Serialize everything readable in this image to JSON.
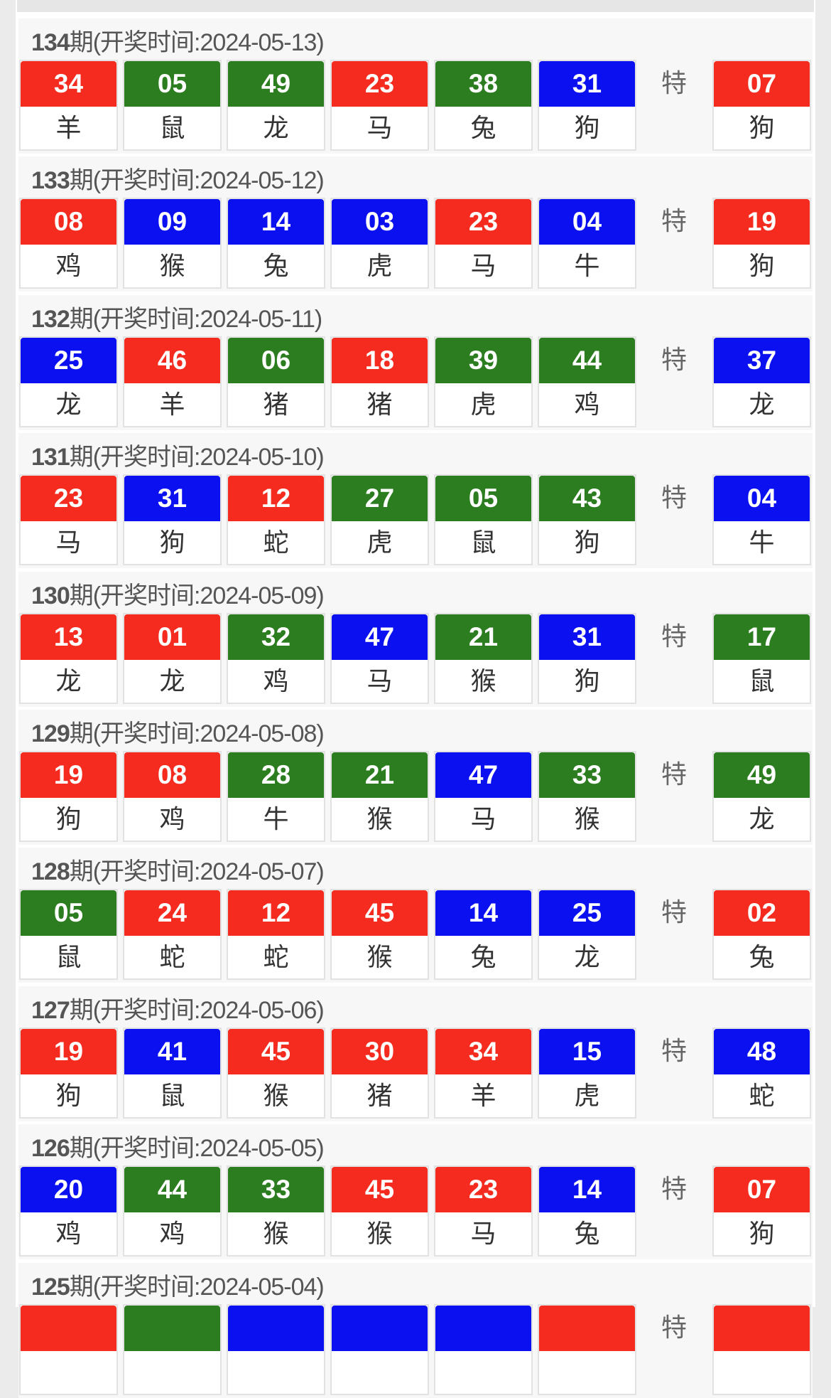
{
  "colors": {
    "red": "#f52b1f",
    "green": "#2b7d1f",
    "blue": "#0b10f0"
  },
  "special_label": "特",
  "draws": [
    {
      "issue": "134",
      "suffix": "期",
      "date_text": "(开奖时间:2024-05-13)",
      "balls": [
        {
          "n": "34",
          "a": "羊",
          "c": "red"
        },
        {
          "n": "05",
          "a": "鼠",
          "c": "green"
        },
        {
          "n": "49",
          "a": "龙",
          "c": "green"
        },
        {
          "n": "23",
          "a": "马",
          "c": "red"
        },
        {
          "n": "38",
          "a": "兔",
          "c": "green"
        },
        {
          "n": "31",
          "a": "狗",
          "c": "blue"
        }
      ],
      "special": {
        "n": "07",
        "a": "狗",
        "c": "red"
      }
    },
    {
      "issue": "133",
      "suffix": "期",
      "date_text": "(开奖时间:2024-05-12)",
      "balls": [
        {
          "n": "08",
          "a": "鸡",
          "c": "red"
        },
        {
          "n": "09",
          "a": "猴",
          "c": "blue"
        },
        {
          "n": "14",
          "a": "兔",
          "c": "blue"
        },
        {
          "n": "03",
          "a": "虎",
          "c": "blue"
        },
        {
          "n": "23",
          "a": "马",
          "c": "red"
        },
        {
          "n": "04",
          "a": "牛",
          "c": "blue"
        }
      ],
      "special": {
        "n": "19",
        "a": "狗",
        "c": "red"
      }
    },
    {
      "issue": "132",
      "suffix": "期",
      "date_text": "(开奖时间:2024-05-11)",
      "balls": [
        {
          "n": "25",
          "a": "龙",
          "c": "blue"
        },
        {
          "n": "46",
          "a": "羊",
          "c": "red"
        },
        {
          "n": "06",
          "a": "猪",
          "c": "green"
        },
        {
          "n": "18",
          "a": "猪",
          "c": "red"
        },
        {
          "n": "39",
          "a": "虎",
          "c": "green"
        },
        {
          "n": "44",
          "a": "鸡",
          "c": "green"
        }
      ],
      "special": {
        "n": "37",
        "a": "龙",
        "c": "blue"
      }
    },
    {
      "issue": "131",
      "suffix": "期",
      "date_text": "(开奖时间:2024-05-10)",
      "balls": [
        {
          "n": "23",
          "a": "马",
          "c": "red"
        },
        {
          "n": "31",
          "a": "狗",
          "c": "blue"
        },
        {
          "n": "12",
          "a": "蛇",
          "c": "red"
        },
        {
          "n": "27",
          "a": "虎",
          "c": "green"
        },
        {
          "n": "05",
          "a": "鼠",
          "c": "green"
        },
        {
          "n": "43",
          "a": "狗",
          "c": "green"
        }
      ],
      "special": {
        "n": "04",
        "a": "牛",
        "c": "blue"
      }
    },
    {
      "issue": "130",
      "suffix": "期",
      "date_text": "(开奖时间:2024-05-09)",
      "balls": [
        {
          "n": "13",
          "a": "龙",
          "c": "red"
        },
        {
          "n": "01",
          "a": "龙",
          "c": "red"
        },
        {
          "n": "32",
          "a": "鸡",
          "c": "green"
        },
        {
          "n": "47",
          "a": "马",
          "c": "blue"
        },
        {
          "n": "21",
          "a": "猴",
          "c": "green"
        },
        {
          "n": "31",
          "a": "狗",
          "c": "blue"
        }
      ],
      "special": {
        "n": "17",
        "a": "鼠",
        "c": "green"
      }
    },
    {
      "issue": "129",
      "suffix": "期",
      "date_text": "(开奖时间:2024-05-08)",
      "balls": [
        {
          "n": "19",
          "a": "狗",
          "c": "red"
        },
        {
          "n": "08",
          "a": "鸡",
          "c": "red"
        },
        {
          "n": "28",
          "a": "牛",
          "c": "green"
        },
        {
          "n": "21",
          "a": "猴",
          "c": "green"
        },
        {
          "n": "47",
          "a": "马",
          "c": "blue"
        },
        {
          "n": "33",
          "a": "猴",
          "c": "green"
        }
      ],
      "special": {
        "n": "49",
        "a": "龙",
        "c": "green"
      }
    },
    {
      "issue": "128",
      "suffix": "期",
      "date_text": "(开奖时间:2024-05-07)",
      "balls": [
        {
          "n": "05",
          "a": "鼠",
          "c": "green"
        },
        {
          "n": "24",
          "a": "蛇",
          "c": "red"
        },
        {
          "n": "12",
          "a": "蛇",
          "c": "red"
        },
        {
          "n": "45",
          "a": "猴",
          "c": "red"
        },
        {
          "n": "14",
          "a": "兔",
          "c": "blue"
        },
        {
          "n": "25",
          "a": "龙",
          "c": "blue"
        }
      ],
      "special": {
        "n": "02",
        "a": "兔",
        "c": "red"
      }
    },
    {
      "issue": "127",
      "suffix": "期",
      "date_text": "(开奖时间:2024-05-06)",
      "balls": [
        {
          "n": "19",
          "a": "狗",
          "c": "red"
        },
        {
          "n": "41",
          "a": "鼠",
          "c": "blue"
        },
        {
          "n": "45",
          "a": "猴",
          "c": "red"
        },
        {
          "n": "30",
          "a": "猪",
          "c": "red"
        },
        {
          "n": "34",
          "a": "羊",
          "c": "red"
        },
        {
          "n": "15",
          "a": "虎",
          "c": "blue"
        }
      ],
      "special": {
        "n": "48",
        "a": "蛇",
        "c": "blue"
      }
    },
    {
      "issue": "126",
      "suffix": "期",
      "date_text": "(开奖时间:2024-05-05)",
      "balls": [
        {
          "n": "20",
          "a": "鸡",
          "c": "blue"
        },
        {
          "n": "44",
          "a": "鸡",
          "c": "green"
        },
        {
          "n": "33",
          "a": "猴",
          "c": "green"
        },
        {
          "n": "45",
          "a": "猴",
          "c": "red"
        },
        {
          "n": "23",
          "a": "马",
          "c": "red"
        },
        {
          "n": "14",
          "a": "兔",
          "c": "blue"
        }
      ],
      "special": {
        "n": "07",
        "a": "狗",
        "c": "red"
      }
    },
    {
      "issue": "125",
      "suffix": "期",
      "date_text": "(开奖时间:2024-05-04)",
      "balls": [
        {
          "n": "",
          "a": "",
          "c": "red"
        },
        {
          "n": "",
          "a": "",
          "c": "green"
        },
        {
          "n": "",
          "a": "",
          "c": "blue"
        },
        {
          "n": "",
          "a": "",
          "c": "blue"
        },
        {
          "n": "",
          "a": "",
          "c": "blue"
        },
        {
          "n": "",
          "a": "",
          "c": "red"
        }
      ],
      "special": {
        "n": "",
        "a": "",
        "c": "red"
      }
    }
  ]
}
